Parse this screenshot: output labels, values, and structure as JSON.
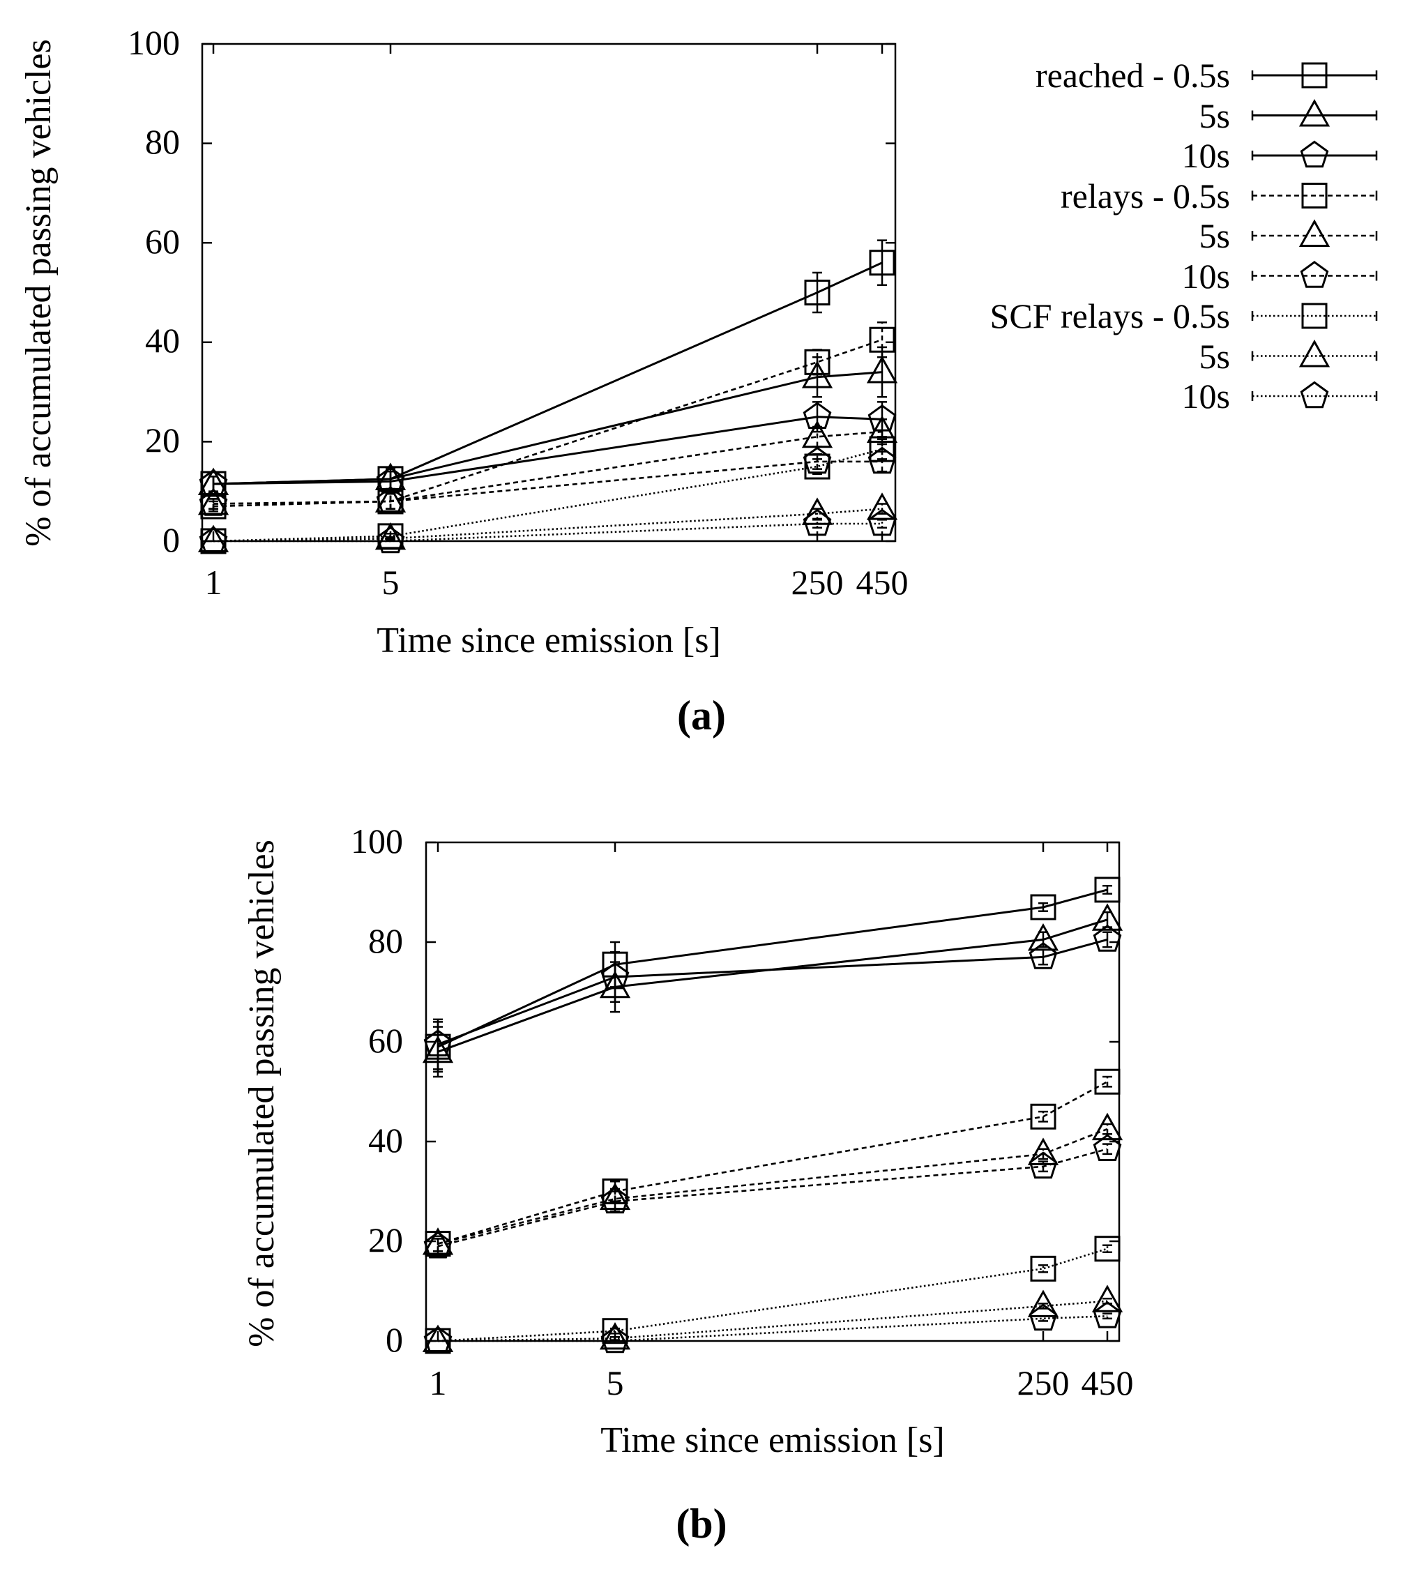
{
  "chart_data": [
    {
      "type": "line",
      "caption": "(a)",
      "xlabel": "Time since emission [s]",
      "ylabel": "% of accumulated passing vehicles",
      "x": [
        "1",
        "5",
        "250",
        "450"
      ],
      "xticks": [
        "1",
        "5",
        "250",
        "450"
      ],
      "ylim": [
        0,
        100
      ],
      "yticks": [
        "0",
        "20",
        "40",
        "60",
        "80",
        "100"
      ],
      "grid": false,
      "legend_position": "right",
      "series": [
        {
          "name": "reached - 0.5s",
          "style": "solid",
          "marker": "square",
          "values": [
            11.5,
            12.5,
            50,
            56
          ],
          "errors": [
            1.5,
            2,
            4,
            4.5
          ]
        },
        {
          "name": "5s",
          "style": "solid",
          "marker": "triangle",
          "values": [
            11.5,
            12.5,
            33,
            34
          ],
          "errors": [
            1.5,
            2,
            4,
            5
          ]
        },
        {
          "name": "10s",
          "style": "solid",
          "marker": "pentagon",
          "values": [
            11.5,
            12,
            25,
            24.5
          ],
          "errors": [
            1.5,
            2,
            3,
            3.5
          ]
        },
        {
          "name": "relays - 0.5s",
          "style": "dashed",
          "marker": "square",
          "values": [
            7,
            8,
            36,
            40.5
          ],
          "errors": [
            1,
            1.5,
            2.5,
            3.5
          ]
        },
        {
          "name": "5s",
          "style": "dashed",
          "marker": "triangle",
          "values": [
            7.5,
            8,
            21,
            22
          ],
          "errors": [
            1,
            1.5,
            2,
            2.5
          ]
        },
        {
          "name": "10s",
          "style": "dashed",
          "marker": "pentagon",
          "values": [
            7.5,
            8,
            16,
            16
          ],
          "errors": [
            1,
            1.5,
            1.5,
            2
          ]
        },
        {
          "name": "SCF relays - 0.5s",
          "style": "dotted",
          "marker": "square",
          "values": [
            0,
            1,
            15,
            18.5
          ],
          "errors": [
            0,
            0.5,
            1.5,
            2
          ]
        },
        {
          "name": "5s",
          "style": "dotted",
          "marker": "triangle",
          "values": [
            0,
            0.5,
            5.5,
            6.5
          ],
          "errors": [
            0,
            0.3,
            1,
            1
          ]
        },
        {
          "name": "10s",
          "style": "dotted",
          "marker": "pentagon",
          "values": [
            0,
            0,
            3.5,
            3.5
          ],
          "errors": [
            0,
            0,
            0.8,
            0.8
          ]
        }
      ]
    },
    {
      "type": "line",
      "caption": "(b)",
      "xlabel": "Time since emission [s]",
      "ylabel": "% of accumulated passing vehicles",
      "x": [
        "1",
        "5",
        "250",
        "450"
      ],
      "xticks": [
        "1",
        "5",
        "250",
        "450"
      ],
      "ylim": [
        0,
        100
      ],
      "yticks": [
        "0",
        "20",
        "40",
        "60",
        "80",
        "100"
      ],
      "grid": false,
      "series": [
        {
          "style": "solid",
          "marker": "square",
          "values": [
            59,
            75.5,
            87,
            90.5
          ],
          "errors": [
            5,
            4.5,
            0.8,
            0.8
          ]
        },
        {
          "style": "solid",
          "marker": "triangle",
          "values": [
            58,
            71,
            80.5,
            84.5
          ],
          "errors": [
            5,
            5,
            1.5,
            1.5
          ]
        },
        {
          "style": "solid",
          "marker": "pentagon",
          "values": [
            59.5,
            73,
            77,
            80.5
          ],
          "errors": [
            5,
            5,
            1.5,
            1.5
          ]
        },
        {
          "style": "dashed",
          "marker": "square",
          "values": [
            19.5,
            30,
            45,
            52
          ],
          "errors": [
            1.5,
            2,
            1,
            1
          ]
        },
        {
          "style": "dashed",
          "marker": "triangle",
          "values": [
            19.5,
            28.5,
            37.5,
            42.5
          ],
          "errors": [
            1.5,
            2,
            1,
            1
          ]
        },
        {
          "style": "dashed",
          "marker": "pentagon",
          "values": [
            19,
            28,
            35,
            38.5
          ],
          "errors": [
            1.5,
            2,
            1,
            1
          ]
        },
        {
          "style": "dotted",
          "marker": "square",
          "values": [
            0,
            2,
            14.5,
            18.5
          ],
          "errors": [
            0,
            0.5,
            0.7,
            0.7
          ]
        },
        {
          "style": "dotted",
          "marker": "triangle",
          "values": [
            0,
            0.5,
            7,
            8
          ],
          "errors": [
            0,
            0.3,
            0.5,
            0.5
          ]
        },
        {
          "style": "dotted",
          "marker": "pentagon",
          "values": [
            0,
            0,
            4.5,
            5
          ],
          "errors": [
            0,
            0,
            0.5,
            0.5
          ]
        }
      ]
    }
  ]
}
